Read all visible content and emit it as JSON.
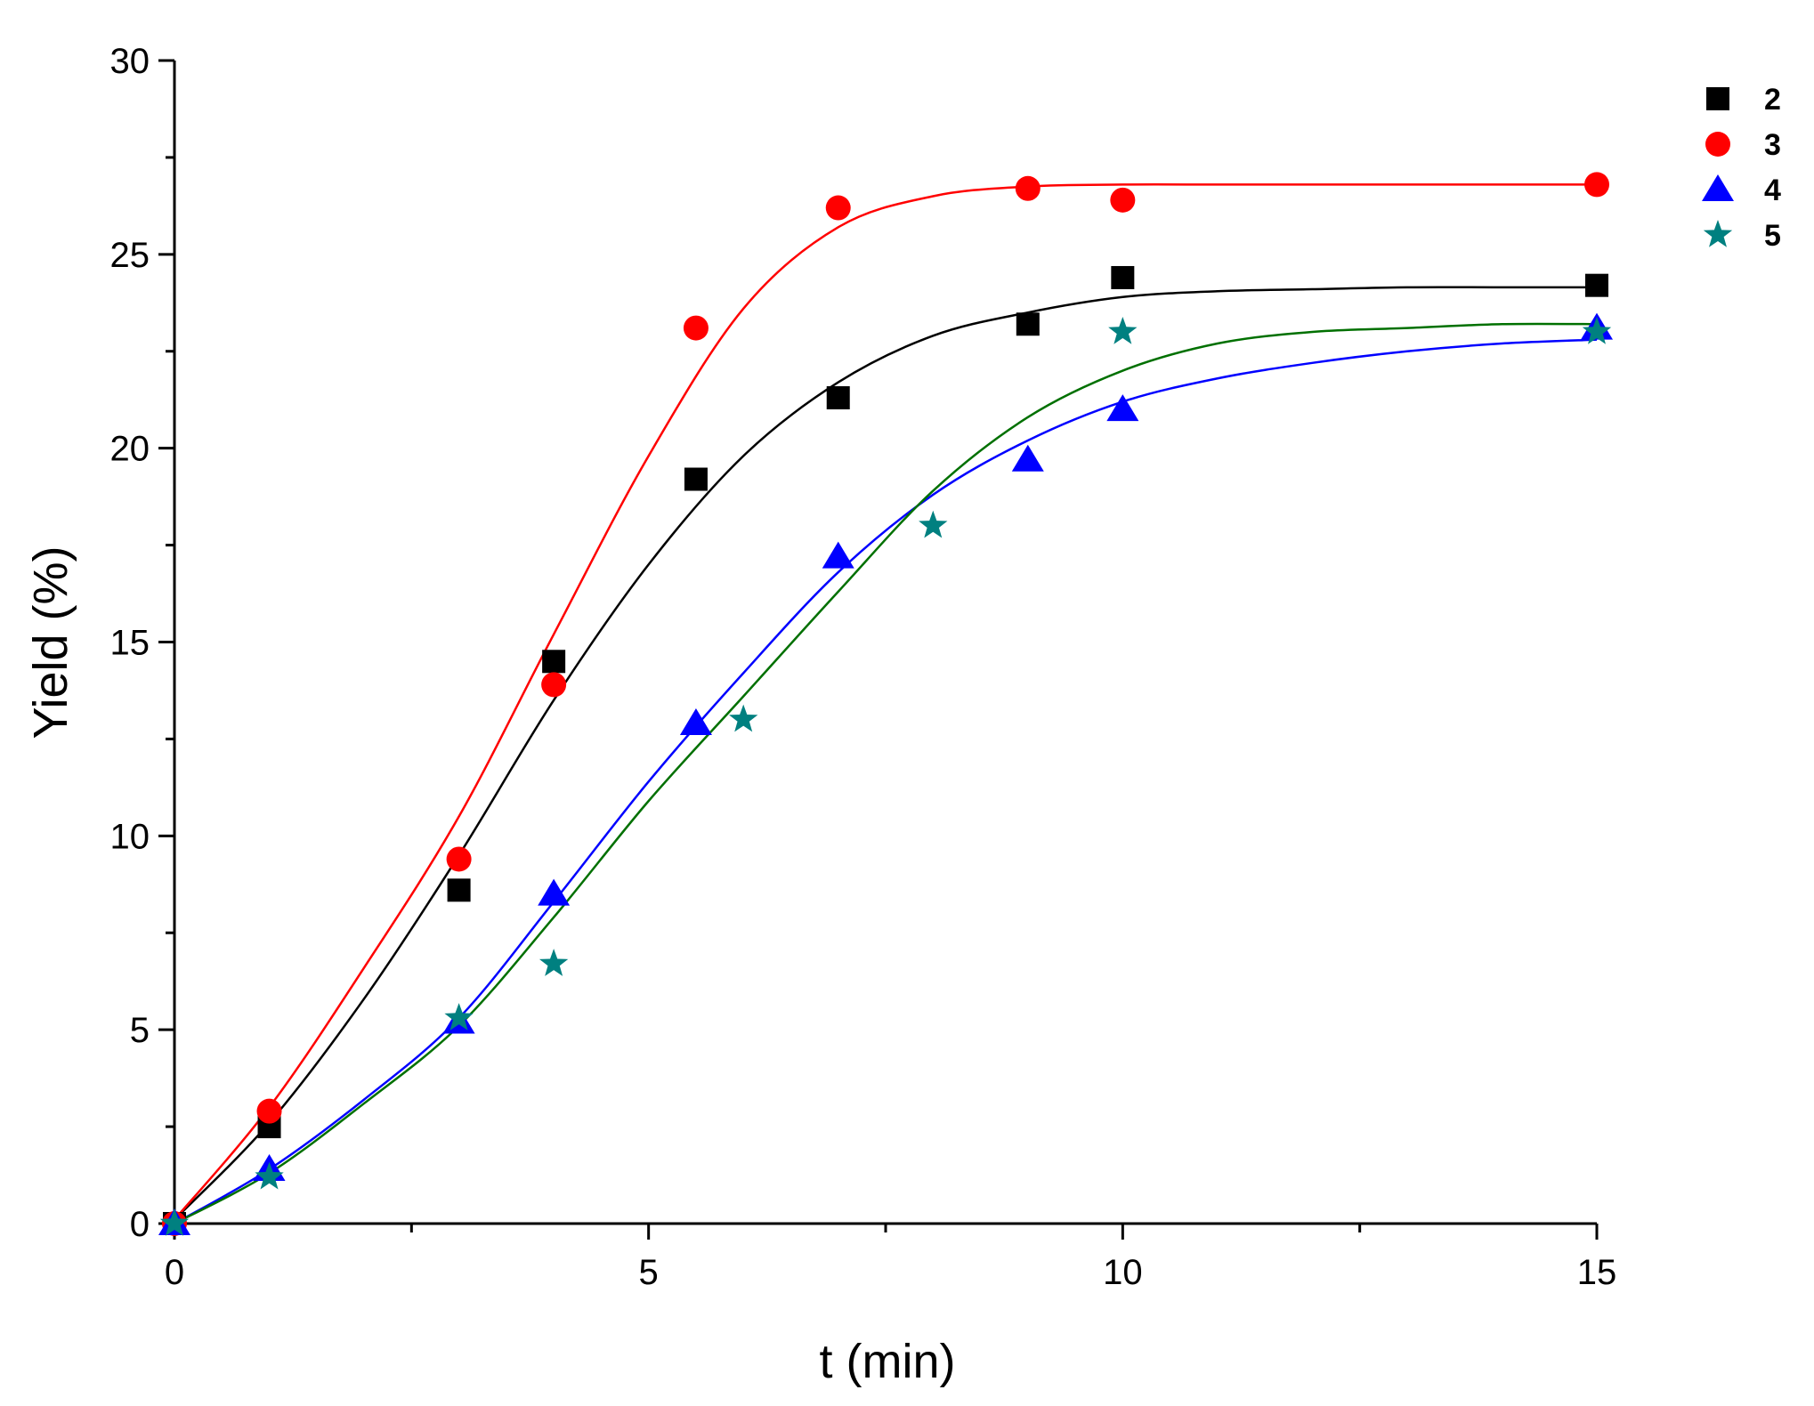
{
  "chart_data": {
    "type": "scatter",
    "title": "",
    "xlabel": "t (min)",
    "ylabel": "Yield (%)",
    "xlim": [
      0,
      15
    ],
    "ylim": [
      0,
      30
    ],
    "x_ticks": [
      0,
      5,
      10,
      15
    ],
    "y_ticks": [
      0,
      5,
      10,
      15,
      20,
      25,
      30
    ],
    "x_tick_labels": [
      "0",
      "5",
      "10",
      "15"
    ],
    "y_tick_labels": [
      "0",
      "5",
      "10",
      "15",
      "20",
      "25",
      "30"
    ],
    "grid": false,
    "legend_position": "top-right",
    "series": [
      {
        "name": "2",
        "marker": "square",
        "color": "#000000",
        "fit_color": "#000000",
        "x": [
          0,
          1,
          3,
          4,
          5.5,
          7,
          9,
          10,
          15
        ],
        "y": [
          0,
          2.5,
          8.6,
          14.5,
          19.2,
          21.3,
          23.2,
          24.4,
          24.2
        ],
        "fit_x": [
          0,
          1,
          2,
          3,
          4,
          5,
          6,
          7,
          8,
          9,
          10,
          11,
          12,
          13,
          14,
          15
        ],
        "fit_y": [
          0.1,
          2.6,
          5.8,
          9.5,
          13.5,
          17.0,
          19.8,
          21.7,
          22.9,
          23.5,
          23.9,
          24.05,
          24.1,
          24.15,
          24.15,
          24.15
        ]
      },
      {
        "name": "3",
        "marker": "circle",
        "color": "#ff0000",
        "fit_color": "#ff0000",
        "x": [
          0,
          1,
          3,
          4,
          5.5,
          7,
          9,
          10,
          15
        ],
        "y": [
          0,
          2.9,
          9.4,
          13.9,
          23.1,
          26.2,
          26.7,
          26.4,
          26.8
        ],
        "fit_x": [
          0,
          1,
          2,
          3,
          4,
          5,
          6,
          7,
          8,
          9,
          10,
          11,
          12,
          13,
          14,
          15
        ],
        "fit_y": [
          0.1,
          3.0,
          6.6,
          10.5,
          15.2,
          19.8,
          23.6,
          25.7,
          26.5,
          26.75,
          26.8,
          26.8,
          26.8,
          26.8,
          26.8,
          26.8
        ]
      },
      {
        "name": "4",
        "marker": "triangle",
        "color": "#0000ff",
        "fit_color": "#0000ff",
        "x": [
          0,
          1,
          3,
          4,
          5.5,
          7,
          9,
          10,
          15
        ],
        "y": [
          0,
          1.4,
          5.2,
          8.5,
          12.9,
          17.2,
          19.7,
          21.0,
          23.1
        ],
        "fit_x": [
          0,
          1,
          2,
          3,
          4,
          5,
          6,
          7,
          8,
          9,
          10,
          11,
          12,
          13,
          14,
          15
        ],
        "fit_y": [
          0,
          1.4,
          3.2,
          5.3,
          8.3,
          11.4,
          14.2,
          16.8,
          18.8,
          20.2,
          21.2,
          21.8,
          22.2,
          22.5,
          22.7,
          22.8
        ]
      },
      {
        "name": "5",
        "marker": "star",
        "color": "#008080",
        "fit_color": "#007000",
        "x": [
          0,
          1,
          3,
          4,
          6,
          8,
          10,
          15
        ],
        "y": [
          0,
          1.2,
          5.3,
          6.7,
          13.0,
          18.0,
          23.0,
          23.0
        ],
        "fit_x": [
          0,
          1,
          2,
          3,
          4,
          5,
          6,
          7,
          8,
          9,
          10,
          11,
          12,
          13,
          14,
          15
        ],
        "fit_y": [
          0,
          1.3,
          3.1,
          5.1,
          7.9,
          10.9,
          13.6,
          16.3,
          18.9,
          20.8,
          22.0,
          22.7,
          23.0,
          23.1,
          23.2,
          23.2
        ]
      }
    ]
  }
}
